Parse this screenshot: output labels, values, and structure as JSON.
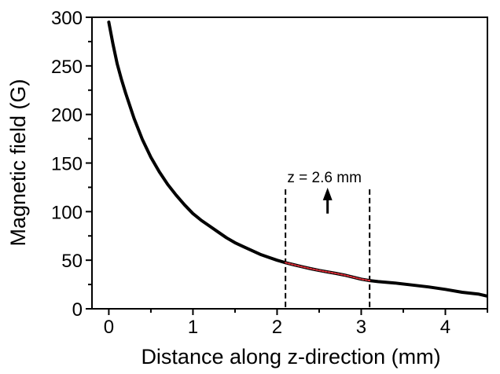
{
  "chart_data": {
    "type": "line",
    "title": "",
    "xlabel": "Distance along z-direction (mm)",
    "ylabel": "Magnetic field (G)",
    "xlim": [
      -0.2,
      4.5
    ],
    "ylim": [
      0,
      300
    ],
    "xticks": [
      0,
      1,
      2,
      3,
      4
    ],
    "yticks": [
      0,
      50,
      100,
      150,
      200,
      250,
      300
    ],
    "grid": false,
    "legend": "none",
    "series": [
      {
        "color": "#000000",
        "x": [
          0,
          0.05,
          0.1,
          0.15,
          0.2,
          0.3,
          0.4,
          0.5,
          0.6,
          0.7,
          0.8,
          0.9,
          1.0,
          1.1,
          1.2,
          1.3,
          1.4,
          1.5,
          1.6,
          1.7,
          1.8,
          1.9,
          2.0,
          2.1,
          2.2,
          2.3,
          2.4,
          2.5,
          2.6,
          2.7,
          2.8,
          2.9,
          3.0,
          3.1,
          3.2,
          3.4,
          3.6,
          3.8,
          4.0,
          4.2,
          4.4,
          4.5
        ],
        "y": [
          295,
          272,
          252,
          236,
          222,
          196,
          174,
          156,
          141,
          128,
          117,
          107,
          98,
          91,
          85,
          79,
          73,
          68,
          64,
          60,
          56,
          53,
          50,
          47.5,
          45.3,
          43.2,
          41.2,
          39.5,
          37.9,
          36.4,
          34.7,
          32.6,
          30.5,
          29,
          28,
          26.5,
          24.5,
          22.5,
          20,
          17,
          15,
          13
        ]
      },
      {
        "color": "#e0303a",
        "style": "dotted",
        "x": [
          2.1,
          2.2,
          2.3,
          2.4,
          2.5,
          2.6,
          2.7,
          2.8,
          2.9,
          3.0,
          3.1
        ],
        "y": [
          47.5,
          45.3,
          43.2,
          41.2,
          39.5,
          37.9,
          36.4,
          34.7,
          32.6,
          30.5,
          29
        ]
      }
    ],
    "vlines": [
      2.1,
      3.1
    ],
    "annotations": [
      {
        "text": "z = 2.6 mm",
        "x": 2.6,
        "arrow_from_y": 98,
        "arrow_to_y": 123
      }
    ]
  }
}
